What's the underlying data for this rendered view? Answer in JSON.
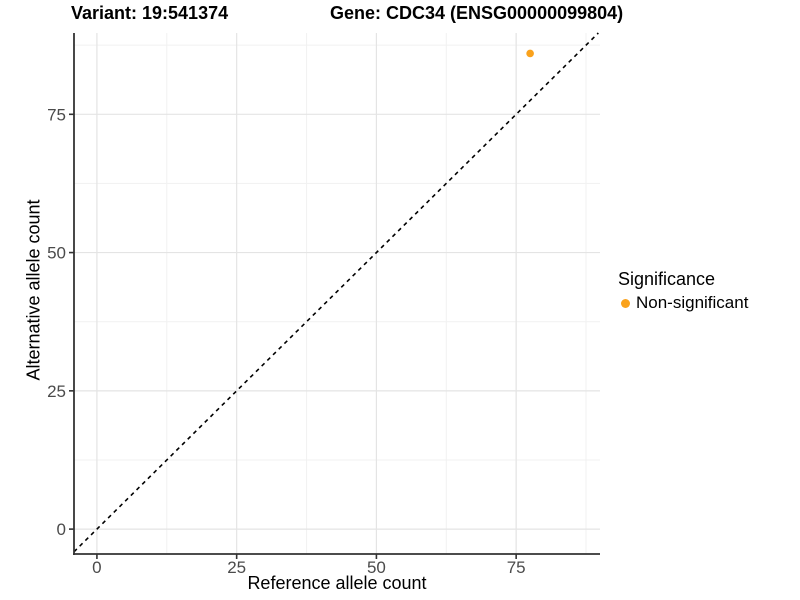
{
  "title": {
    "variant": "Variant: 19:541374",
    "gene": "Gene: CDC34 (ENSG00000099804)"
  },
  "axes": {
    "x_label": "Reference allele count",
    "y_label": "Alternative allele count"
  },
  "legend": {
    "title": "Significance",
    "items": [
      {
        "label": "Non-significant",
        "color": "#FAA21C"
      }
    ]
  },
  "colors": {
    "point": "#FAA21C",
    "grid_major": "#E4E4E4",
    "grid_minor": "#F1F1F1",
    "axis_line": "#333333",
    "tick_mark": "#333333",
    "tick_label": "#4B4B4B",
    "reference_line": "#000000",
    "background": "#FFFFFF"
  },
  "chart_data": {
    "type": "scatter",
    "title": "Variant: 19:541374 | Gene: CDC34 (ENSG00000099804)",
    "xlabel": "Reference allele count",
    "ylabel": "Alternative allele count",
    "xlim": [
      -4.1,
      90.0
    ],
    "ylim": [
      -4.5,
      89.7
    ],
    "x_ticks": [
      0,
      25,
      50,
      75
    ],
    "y_ticks": [
      0,
      25,
      50,
      75
    ],
    "x_minor_ticks": [
      12.5,
      37.5,
      62.5,
      87.5
    ],
    "y_minor_ticks": [
      12.5,
      37.5,
      62.5,
      87.5
    ],
    "grid": "major+minor",
    "legend_position": "right",
    "series": [
      {
        "name": "Non-significant",
        "color": "#FAA21C",
        "marker": "circle",
        "marker_radius_px": 3.8,
        "points": [
          {
            "x": 77.5,
            "y": 86
          }
        ]
      }
    ],
    "reference_line": {
      "kind": "identity y=x",
      "style": "dashed",
      "color": "#000000"
    }
  }
}
